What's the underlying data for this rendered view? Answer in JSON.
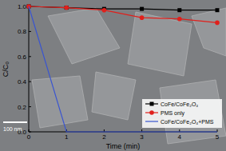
{
  "chart_data": {
    "type": "line",
    "x": [
      0,
      1,
      2,
      3,
      4,
      5
    ],
    "series": [
      {
        "name": "CoFe/CoFe₂O₄",
        "color": "#000000",
        "marker": "square",
        "values": [
          1.0,
          0.99,
          0.98,
          0.98,
          0.97,
          0.97
        ]
      },
      {
        "name": "PMS only",
        "color": "#e0201c",
        "marker": "circle",
        "values": [
          1.0,
          0.99,
          0.97,
          0.91,
          0.9,
          0.87
        ]
      },
      {
        "name": "CoFe/CoFe₂O₄+PMS",
        "color": "#3a55d0",
        "marker": "none",
        "values": [
          1.0,
          0.0,
          0.0,
          0.0,
          0.0,
          0.0
        ]
      }
    ],
    "x_label": "Time (min)",
    "y_label": "C/C₀",
    "annotation": "100 nm",
    "xlim": [
      0,
      5
    ],
    "xticks": [
      0,
      1,
      2,
      3,
      4,
      5
    ],
    "ylim": [
      0,
      1.0
    ],
    "yticks": [
      {
        "value": 0,
        "label": "0.0"
      },
      {
        "value": 0.2,
        "label": "0.2"
      },
      {
        "value": 0.4,
        "label": "0.4"
      },
      {
        "value": 0.6,
        "label": "0.6"
      },
      {
        "value": 0.8,
        "label": "0.8"
      },
      {
        "value": 1.0,
        "label": "1.0"
      }
    ],
    "legend": "right",
    "grid": false
  }
}
